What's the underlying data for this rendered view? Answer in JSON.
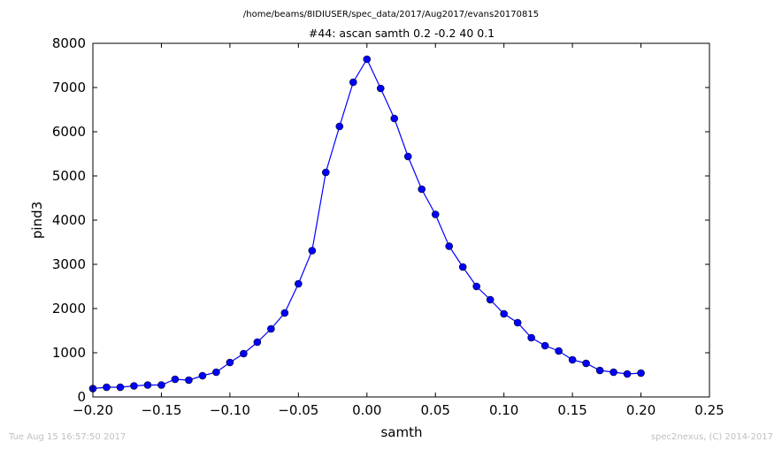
{
  "chart_data": {
    "type": "line",
    "suptitle": "/home/beams/8IDIUSER/spec_data/2017/Aug2017/evans20170815",
    "title": "#44: ascan  samth 0.2 -0.2  40 0.1",
    "xlabel": "samth",
    "ylabel": "pind3",
    "xlim": [
      -0.2,
      0.25
    ],
    "ylim": [
      0,
      8000
    ],
    "xticks": [
      -0.2,
      -0.15,
      -0.1,
      -0.05,
      0.0,
      0.05,
      0.1,
      0.15,
      0.2,
      0.25
    ],
    "xtick_labels": [
      "−0.20",
      "−0.15",
      "−0.10",
      "−0.05",
      "0.00",
      "0.05",
      "0.10",
      "0.15",
      "0.20",
      "0.25"
    ],
    "yticks": [
      0,
      1000,
      2000,
      3000,
      4000,
      5000,
      6000,
      7000,
      8000
    ],
    "ytick_labels": [
      "0",
      "1000",
      "2000",
      "3000",
      "4000",
      "5000",
      "6000",
      "7000",
      "8000"
    ],
    "grid": false,
    "series": [
      {
        "color": "#0000ff",
        "x": [
          -0.2,
          -0.19,
          -0.18,
          -0.17,
          -0.16,
          -0.15,
          -0.14,
          -0.13,
          -0.12,
          -0.11,
          -0.1,
          -0.09,
          -0.08,
          -0.07,
          -0.06,
          -0.05,
          -0.04,
          -0.03,
          -0.02,
          -0.01,
          0.0,
          0.01,
          0.02,
          0.03,
          0.04,
          0.05,
          0.06,
          0.07,
          0.08,
          0.09,
          0.1,
          0.11,
          0.12,
          0.13,
          0.14,
          0.15,
          0.16,
          0.17,
          0.18,
          0.19,
          0.2
        ],
        "y": [
          190,
          220,
          220,
          250,
          270,
          270,
          400,
          380,
          480,
          560,
          780,
          980,
          1240,
          1540,
          1900,
          2560,
          3310,
          5080,
          6120,
          7120,
          7640,
          6980,
          6300,
          5440,
          4700,
          4130,
          3410,
          2940,
          2500,
          2200,
          1880,
          1680,
          1340,
          1160,
          1040,
          840,
          760,
          600,
          560,
          520,
          540
        ]
      }
    ]
  },
  "footer": {
    "timestamp": "Tue Aug 15 16:57:50 2017",
    "credit": "spec2nexus, (C) 2014-2017"
  }
}
